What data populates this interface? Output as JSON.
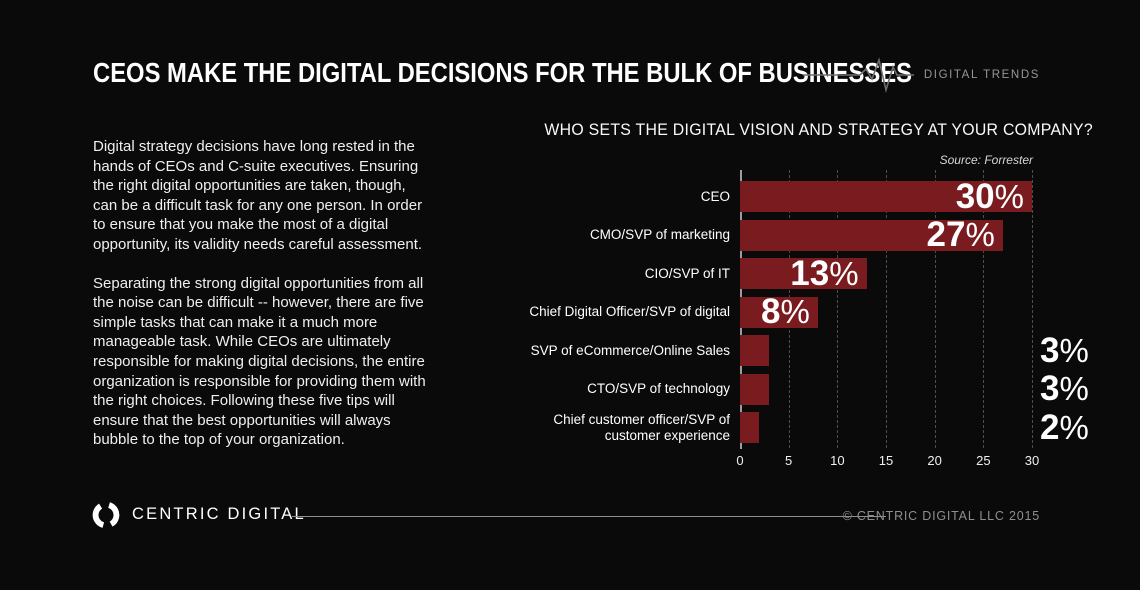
{
  "header": {
    "title": "CEOS MAKE THE DIGITAL DECISIONS FOR THE BULK OF BUSINESSES",
    "brand_tag": "DIGITAL TRENDS"
  },
  "intro": {
    "paragraph1": "Digital strategy decisions have long rested in the hands of CEOs and C-suite executives. Ensuring the right digital opportunities are taken, though, can be a difficult task for any one person. In order to ensure that you make the most of a digital opportunity, its validity needs careful assessment.",
    "paragraph2": "Separating the strong digital opportunities from all the noise can be difficult -- however, there are five simple tasks that can make it a much more manageable task. While CEOs are ultimately responsible for making digital decisions, the entire organization is responsible for providing them with the right choices. Following these five tips will ensure that the best opportunities will always bubble to the top of your organization."
  },
  "chart_data": {
    "type": "bar",
    "orientation": "horizontal",
    "title": "WHO SETS THE DIGITAL VISION AND STRATEGY AT YOUR COMPANY?",
    "source": "Source: Forrester",
    "categories": [
      "CEO",
      "CMO/SVP of marketing",
      "CIO/SVP of IT",
      "Chief Digital Officer/SVP of digital",
      "SVP of eCommerce/Online Sales",
      "CTO/SVP of technology",
      "Chief customer officer/SVP of customer experience"
    ],
    "values": [
      30,
      27,
      13,
      8,
      3,
      3,
      2
    ],
    "value_labels": [
      "30%",
      "27%",
      "13%",
      "8%",
      "3%",
      "3%",
      "2%"
    ],
    "unit": "%",
    "xticks": [
      0,
      5,
      10,
      15,
      20,
      25,
      30
    ],
    "xlim": [
      0,
      30
    ],
    "grid": "dashed-vertical",
    "legend": "none",
    "bar_color": "#7a1b20"
  },
  "colors": {
    "background": "#0a0a0a",
    "bar_red": "#7a1b20",
    "muted_gray": "#969696"
  },
  "footer": {
    "logo_text": "CENTRIC DIGITAL",
    "copyright": "© CENTRIC DIGITAL LLC 2015"
  }
}
